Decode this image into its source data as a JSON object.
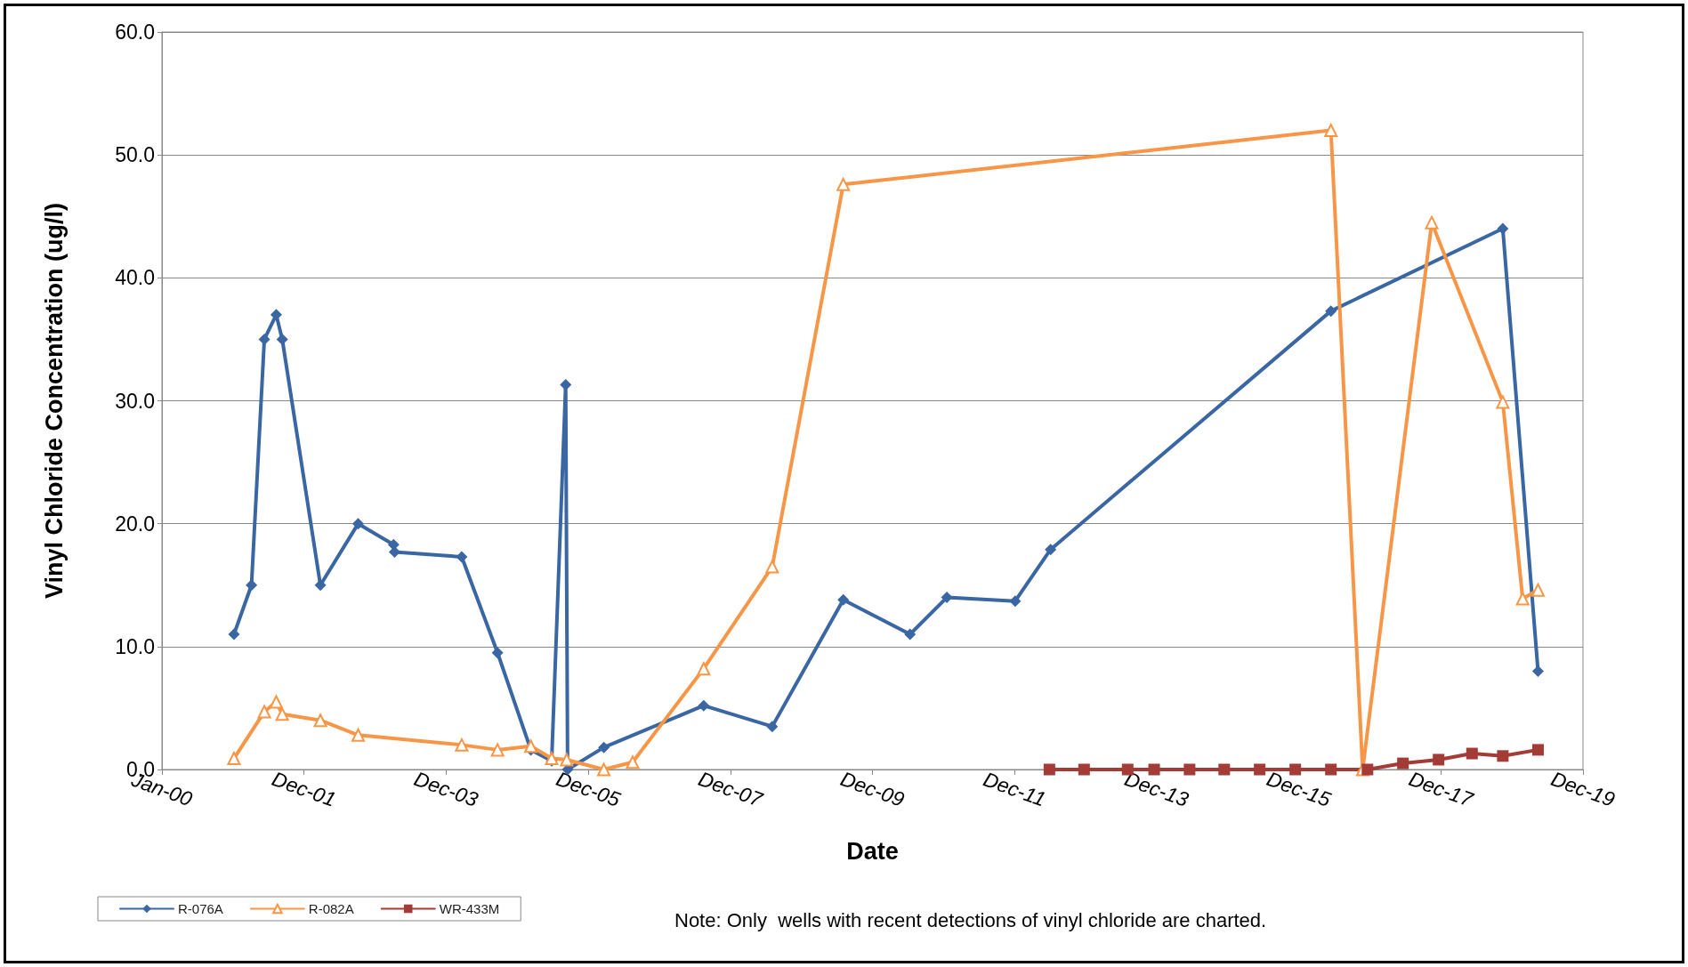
{
  "chart_data": {
    "type": "line",
    "xlabel": "Date",
    "ylabel": "Vinyl Chloride Concentration (ug/l)",
    "xlim": [
      "2000-01-01",
      "2019-12-27"
    ],
    "xticks": [
      {
        "value": "2000-01-01",
        "label": "Jan-00"
      },
      {
        "value": "2001-12-31",
        "label": "Dec-01"
      },
      {
        "value": "2003-12-31",
        "label": "Dec-03"
      },
      {
        "value": "2005-12-30",
        "label": "Dec-05"
      },
      {
        "value": "2007-12-30",
        "label": "Dec-07"
      },
      {
        "value": "2009-12-29",
        "label": "Dec-09"
      },
      {
        "value": "2011-12-29",
        "label": "Dec-11"
      },
      {
        "value": "2013-12-28",
        "label": "Dec-13"
      },
      {
        "value": "2015-12-28",
        "label": "Dec-15"
      },
      {
        "value": "2017-12-27",
        "label": "Dec-17"
      },
      {
        "value": "2019-12-27",
        "label": "Dec-19"
      }
    ],
    "ylim": [
      0,
      60
    ],
    "yticks": [
      {
        "value": 0,
        "label": "0.0"
      },
      {
        "value": 10,
        "label": "10.0"
      },
      {
        "value": 20,
        "label": "20.0"
      },
      {
        "value": 30,
        "label": "30.0"
      },
      {
        "value": 40,
        "label": "40.0"
      },
      {
        "value": 50,
        "label": "50.0"
      },
      {
        "value": 60,
        "label": "60.0"
      }
    ],
    "grid": "y",
    "legend": "bottom left",
    "line_style": "solid",
    "series": [
      {
        "name": "R-076A",
        "color": "#3a67a3",
        "marker": "diamond",
        "x": [
          "2001-01-05",
          "2001-04-05",
          "2001-06-10",
          "2001-08-10",
          "2001-09-10",
          "2002-03-25",
          "2002-10-05",
          "2003-04-05",
          "2003-04-10",
          "2004-03-20",
          "2004-09-20",
          "2005-03-10",
          "2005-06-25",
          "2005-09-05",
          "2005-09-15",
          "2006-03-20",
          "2007-08-15",
          "2008-08-01",
          "2009-08-01",
          "2010-07-10",
          "2011-01-15",
          "2012-01-01",
          "2012-07-01",
          "2016-06-10",
          "2018-11-10",
          "2019-05-10"
        ],
        "values": [
          11.0,
          15.0,
          35.0,
          37.0,
          35.0,
          15.0,
          20.0,
          18.3,
          17.7,
          17.3,
          9.5,
          1.6,
          0.7,
          31.3,
          0.0,
          1.8,
          5.2,
          3.5,
          13.8,
          11.0,
          14.0,
          13.7,
          17.9,
          37.3,
          44.0,
          8.0
        ]
      },
      {
        "name": "R-082A",
        "color": "#f79646",
        "marker": "triangle",
        "x": [
          "2001-01-05",
          "2001-06-10",
          "2001-08-10",
          "2001-09-10",
          "2002-03-25",
          "2002-10-05",
          "2004-03-20",
          "2004-09-20",
          "2005-03-10",
          "2005-06-25",
          "2005-09-10",
          "2006-03-20",
          "2006-08-15",
          "2007-08-15",
          "2008-08-01",
          "2009-08-01",
          "2016-06-10",
          "2016-11-20",
          "2017-11-10",
          "2018-11-10",
          "2019-02-20",
          "2019-05-10"
        ],
        "values": [
          0.9,
          4.7,
          5.5,
          4.5,
          4.0,
          2.8,
          2.0,
          1.6,
          1.9,
          0.9,
          0.8,
          0.0,
          0.6,
          8.2,
          16.5,
          47.6,
          52.0,
          0.0,
          44.5,
          29.9,
          13.9,
          14.6
        ]
      },
      {
        "name": "WR-433M",
        "color": "#a33b37",
        "marker": "square",
        "x": [
          "2012-06-25",
          "2012-12-20",
          "2013-08-01",
          "2013-12-15",
          "2014-06-15",
          "2014-12-10",
          "2015-06-10",
          "2015-12-10",
          "2016-06-10",
          "2016-12-15",
          "2017-06-15",
          "2017-12-15",
          "2018-06-05",
          "2018-11-10",
          "2019-05-10"
        ],
        "values": [
          0.0,
          0.0,
          0.0,
          0.0,
          0.0,
          0.0,
          0.0,
          0.0,
          0.0,
          0.0,
          0.5,
          0.8,
          1.3,
          1.1,
          1.6
        ]
      }
    ],
    "annotations": [
      "Note: Only  wells with recent detections of vinyl chloride are charted."
    ]
  }
}
